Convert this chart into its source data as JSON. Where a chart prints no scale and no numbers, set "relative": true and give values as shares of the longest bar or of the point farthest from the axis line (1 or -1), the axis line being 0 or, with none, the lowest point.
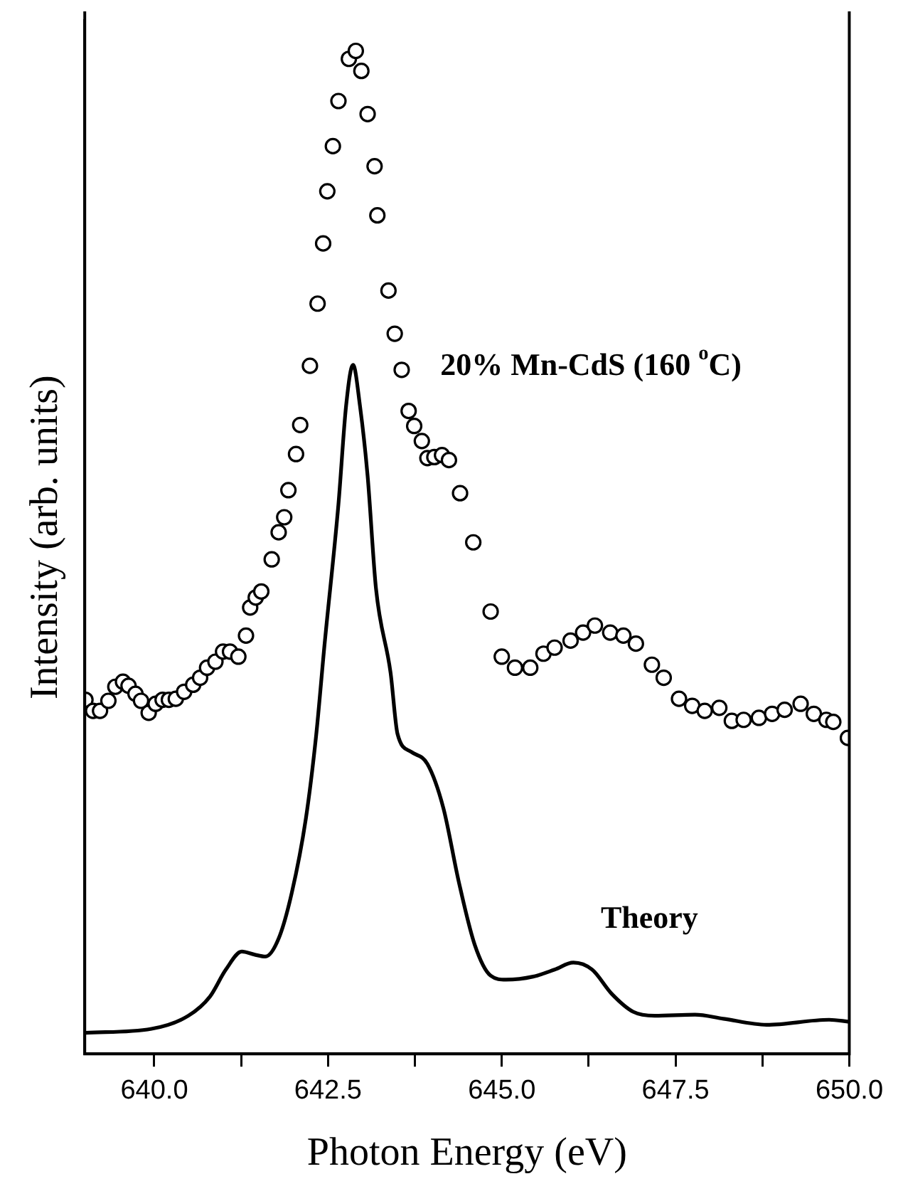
{
  "chart_data": {
    "type": "scatter",
    "relative": true,
    "xlabel": "Photon Energy (eV)",
    "ylabel": "Intensity (arb. units)",
    "xlim": [
      639,
      650
    ],
    "xticks": [
      {
        "value": 640,
        "label": "640.0"
      },
      {
        "value": 641.25,
        "label": null
      },
      {
        "value": 642.5,
        "label": "642.5"
      },
      {
        "value": 643.75,
        "label": null
      },
      {
        "value": 645,
        "label": "645.0"
      },
      {
        "value": 646.25,
        "label": null
      },
      {
        "value": 647.5,
        "label": "647.5"
      },
      {
        "value": 648.75,
        "label": null
      },
      {
        "value": 650,
        "label": "650.0"
      }
    ],
    "grid": false,
    "legend": false,
    "tick_labels": "x",
    "series": [
      {
        "name": "20% Mn-CdS (160 $^{o}$C)",
        "marker": "circle",
        "color": "#000000",
        "x": [
          639.01,
          639.12,
          639.22,
          639.34,
          639.44,
          639.55,
          639.63,
          639.73,
          639.81,
          639.92,
          640.02,
          640.12,
          640.21,
          640.31,
          640.43,
          640.56,
          640.66,
          640.76,
          640.88,
          640.99,
          641.09,
          641.21,
          641.32,
          641.38,
          641.46,
          641.54,
          641.69,
          641.79,
          641.87,
          641.93,
          642.04,
          642.1,
          642.24,
          642.35,
          642.43,
          642.49,
          642.57,
          642.65,
          642.8,
          642.9,
          642.98,
          643.07,
          643.17,
          643.21,
          643.37,
          643.46,
          643.56,
          643.66,
          643.74,
          643.85,
          643.93,
          644.03,
          644.14,
          644.24,
          644.4,
          644.59,
          644.84,
          645.0,
          645.19,
          645.41,
          645.6,
          645.76,
          645.99,
          646.17,
          646.34,
          646.56,
          646.75,
          646.93,
          647.16,
          647.33,
          647.55,
          647.74,
          647.92,
          648.13,
          648.31,
          648.48,
          648.7,
          648.89,
          649.07,
          649.3,
          649.49,
          649.67,
          649.77,
          649.98
        ],
        "values": [
          0.353,
          0.342,
          0.342,
          0.352,
          0.366,
          0.371,
          0.367,
          0.359,
          0.352,
          0.34,
          0.349,
          0.353,
          0.353,
          0.354,
          0.361,
          0.368,
          0.375,
          0.385,
          0.391,
          0.401,
          0.401,
          0.396,
          0.417,
          0.445,
          0.455,
          0.461,
          0.493,
          0.52,
          0.535,
          0.562,
          0.598,
          0.627,
          0.686,
          0.748,
          0.808,
          0.86,
          0.905,
          0.95,
          0.992,
          1,
          0.98,
          0.937,
          0.885,
          0.836,
          0.761,
          0.718,
          0.682,
          0.641,
          0.626,
          0.611,
          0.594,
          0.595,
          0.597,
          0.592,
          0.559,
          0.51,
          0.441,
          0.396,
          0.385,
          0.385,
          0.399,
          0.405,
          0.412,
          0.42,
          0.427,
          0.42,
          0.417,
          0.409,
          0.388,
          0.375,
          0.354,
          0.347,
          0.342,
          0.345,
          0.332,
          0.333,
          0.335,
          0.339,
          0.343,
          0.349,
          0.339,
          0.333,
          0.331,
          0.315
        ]
      },
      {
        "name": "Theory",
        "type": "line",
        "marker": "none",
        "line_style": "solid",
        "color": "#000000",
        "x": [
          639.01,
          639.96,
          640.49,
          640.8,
          641.03,
          641.26,
          641.44,
          641.6,
          641.79,
          641.98,
          642.18,
          642.33,
          642.45,
          642.65,
          642.76,
          642.86,
          642.96,
          643.07,
          643.19,
          643.4,
          643.5,
          643.7,
          643.93,
          644.16,
          644.38,
          644.61,
          644.84,
          645.06,
          645.45,
          645.76,
          646.03,
          646.3,
          646.58,
          646.89,
          647.2,
          647.78,
          648.19,
          648.81,
          649.71,
          650.0
        ],
        "values": [
          0.021,
          0.025,
          0.038,
          0.057,
          0.084,
          0.102,
          0.099,
          0.097,
          0.115,
          0.161,
          0.234,
          0.318,
          0.408,
          0.548,
          0.646,
          0.687,
          0.646,
          0.576,
          0.464,
          0.38,
          0.319,
          0.301,
          0.289,
          0.245,
          0.172,
          0.109,
          0.078,
          0.074,
          0.077,
          0.084,
          0.091,
          0.084,
          0.06,
          0.042,
          0.038,
          0.039,
          0.035,
          0.029,
          0.034,
          0.032
        ]
      }
    ]
  }
}
